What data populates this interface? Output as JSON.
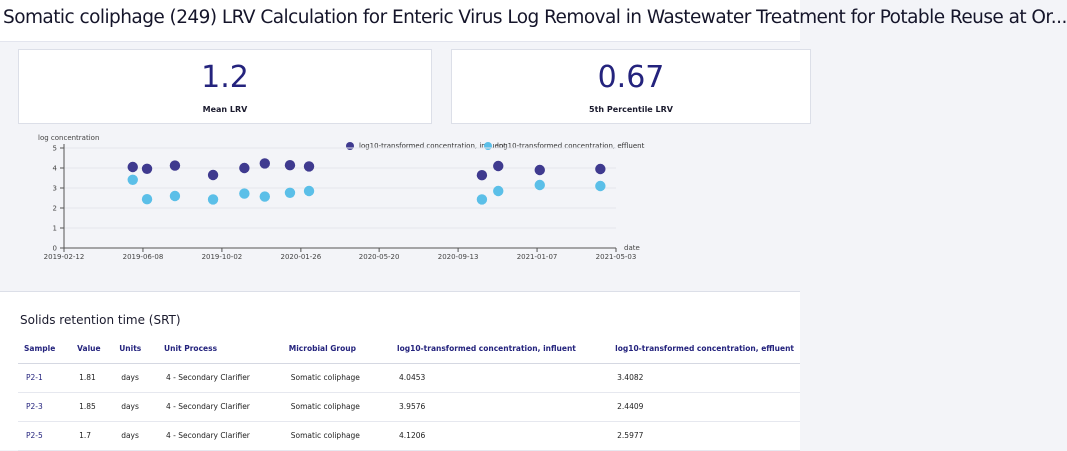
{
  "header": {
    "title": "Somatic coliphage (249) LRV Calculation for Enteric Virus Log Removal in Wastewater Treatment for Potable Reuse at Or..."
  },
  "kpis": [
    {
      "value": "1.2",
      "label": "Mean LRV"
    },
    {
      "value": "0.67",
      "label": "5th Percentile LRV"
    }
  ],
  "chart_data": {
    "type": "scatter",
    "ylabel": "log concentration",
    "xlabel": "date",
    "ylim": [
      0,
      5
    ],
    "yticks": [
      "0",
      "1",
      "2",
      "3",
      "4",
      "5"
    ],
    "xticks": [
      "2019-02-12",
      "2019-06-08",
      "2019-10-02",
      "2020-01-26",
      "2020-05-20",
      "2020-09-13",
      "2021-01-07",
      "2021-05-03"
    ],
    "legend_placement": "top-right",
    "grid": "horizontal",
    "series": [
      {
        "name": "log10-transformed concentration, influent",
        "color": "#3f3a8f",
        "points": [
          {
            "x": "2019-05-24",
            "y": 4.05
          },
          {
            "x": "2019-06-14",
            "y": 3.96
          },
          {
            "x": "2019-07-25",
            "y": 4.12
          },
          {
            "x": "2019-09-19",
            "y": 3.65
          },
          {
            "x": "2019-11-04",
            "y": 4.0
          },
          {
            "x": "2019-12-04",
            "y": 4.23
          },
          {
            "x": "2020-01-10",
            "y": 4.14
          },
          {
            "x": "2020-02-07",
            "y": 4.08
          },
          {
            "x": "2020-10-18",
            "y": 3.64
          },
          {
            "x": "2020-11-11",
            "y": 4.1
          },
          {
            "x": "2021-01-11",
            "y": 3.9
          },
          {
            "x": "2021-04-10",
            "y": 3.95
          }
        ]
      },
      {
        "name": "log10-transformed concentration, effluent",
        "color": "#5bbfe8",
        "points": [
          {
            "x": "2019-05-24",
            "y": 3.41
          },
          {
            "x": "2019-06-14",
            "y": 2.44
          },
          {
            "x": "2019-07-25",
            "y": 2.6
          },
          {
            "x": "2019-09-19",
            "y": 2.43
          },
          {
            "x": "2019-11-04",
            "y": 2.72
          },
          {
            "x": "2019-12-04",
            "y": 2.57
          },
          {
            "x": "2020-01-10",
            "y": 2.76
          },
          {
            "x": "2020-02-07",
            "y": 2.85
          },
          {
            "x": "2020-10-18",
            "y": 2.43
          },
          {
            "x": "2020-11-11",
            "y": 2.85
          },
          {
            "x": "2021-01-11",
            "y": 3.15
          },
          {
            "x": "2021-04-10",
            "y": 3.1
          }
        ]
      }
    ]
  },
  "table": {
    "title": "Solids retention time (SRT)",
    "columns": [
      "Sample",
      "Value",
      "Units",
      "Unit Process",
      "Microbial Group",
      "log10-transformed concentration, influent",
      "log10-transformed concentration, effluent"
    ],
    "rows": [
      [
        "P2-1",
        "1.81",
        "days",
        "4 - Secondary Clarifier",
        "Somatic coliphage",
        "4.0453",
        "3.4082"
      ],
      [
        "P2-3",
        "1.85",
        "days",
        "4 - Secondary Clarifier",
        "Somatic coliphage",
        "3.9576",
        "2.4409"
      ],
      [
        "P2-5",
        "1.7",
        "days",
        "4 - Secondary Clarifier",
        "Somatic coliphage",
        "4.1206",
        "2.5977"
      ]
    ]
  }
}
